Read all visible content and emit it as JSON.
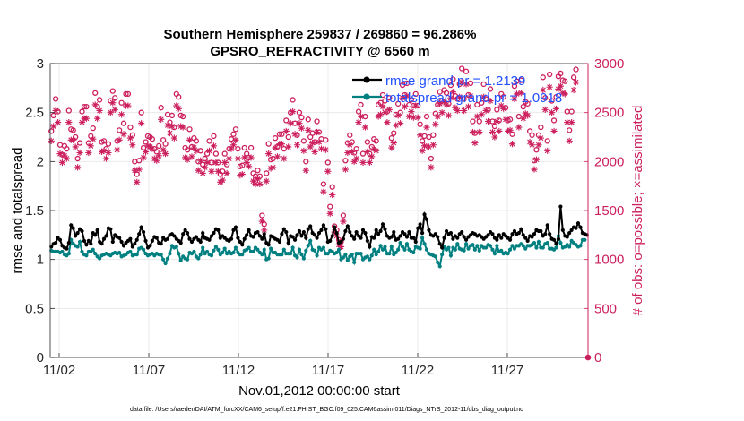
{
  "chart_data": {
    "type": "line",
    "title_line1": "Southern Hemisphere 259837 / 269860 = 96.286%",
    "title_line2": "GPSRO_REFRACTIVITY @ 6560 m",
    "xlabel": "Nov.01,2012 00:00:00 start",
    "ylabel_left": "rmse and totalspread",
    "ylabel_right": "# of obs: o=possible; ×=assimilated",
    "footnote": "data file: /Users/raeder/DAI/ATM_forcXX/CAM6_setup/f.e21.FHIST_BGC.f09_025.CAM6assim.011/Diags_NTrS_2012-11/obs_diag_output.nc",
    "x_range_days": [
      0.5,
      30.5
    ],
    "x_ticks": [
      {
        "day": 1,
        "label": "11/02"
      },
      {
        "day": 6,
        "label": "11/07"
      },
      {
        "day": 11,
        "label": "11/12"
      },
      {
        "day": 16,
        "label": "11/17"
      },
      {
        "day": 21,
        "label": "11/22"
      },
      {
        "day": 26,
        "label": "11/27"
      }
    ],
    "ylim_left": [
      0,
      3
    ],
    "yticks_left": [
      "0",
      "0.5",
      "1",
      "1.5",
      "2",
      "2.5",
      "3"
    ],
    "ylim_right": [
      0,
      3000
    ],
    "yticks_right": [
      "0",
      "500",
      "1000",
      "1500",
      "2000",
      "2500",
      "3000"
    ],
    "series": [
      {
        "name": "rmse",
        "legend": "rmse grand pr = 1.2139",
        "color": "#000000",
        "axis": "left",
        "values": [
          1.13,
          1.16,
          1.17,
          1.22,
          1.2,
          1.14,
          1.12,
          1.11,
          1.17,
          1.35,
          1.32,
          1.24,
          1.27,
          1.31,
          1.29,
          1.19,
          1.15,
          1.19,
          1.16,
          1.27,
          1.25,
          1.3,
          1.18,
          1.16,
          1.21,
          1.24,
          1.32,
          1.31,
          1.18,
          1.25,
          1.23,
          1.22,
          1.18,
          1.14,
          1.17,
          1.19,
          1.21,
          1.13,
          1.16,
          1.2,
          1.26,
          1.33,
          1.28,
          1.19,
          1.12,
          1.14,
          1.19,
          1.23,
          1.22,
          1.17,
          1.16,
          1.22,
          1.2,
          1.21,
          1.25,
          1.26,
          1.24,
          1.21,
          1.19,
          1.17,
          1.26,
          1.3,
          1.27,
          1.21,
          1.18,
          1.21,
          1.23,
          1.2,
          1.18,
          1.27,
          1.22,
          1.21,
          1.2,
          1.24,
          1.27,
          1.31,
          1.3,
          1.22,
          1.24,
          1.22,
          1.2,
          1.19,
          1.21,
          1.3,
          1.33,
          1.22,
          1.18,
          1.15,
          1.21,
          1.25,
          1.3,
          1.24,
          1.23,
          1.27,
          1.28,
          1.24,
          1.21,
          1.26,
          1.17,
          1.15,
          1.24,
          1.23,
          1.21,
          1.2,
          1.18,
          1.26,
          1.31,
          1.28,
          1.17,
          1.24,
          1.23,
          1.2,
          1.25,
          1.29,
          1.24,
          1.28,
          1.22,
          1.31,
          1.34,
          1.27,
          1.25,
          1.22,
          1.27,
          1.3,
          1.35,
          1.31,
          1.18,
          1.19,
          1.24,
          1.33,
          1.27,
          1.17,
          1.18,
          1.21,
          1.29,
          1.34,
          1.28,
          1.24,
          1.21,
          1.28,
          1.24,
          1.22,
          1.3,
          1.27,
          1.19,
          1.13,
          1.23,
          1.22,
          1.3,
          1.26,
          1.29,
          1.36,
          1.31,
          1.24,
          1.22,
          1.23,
          1.28,
          1.2,
          1.21,
          1.24,
          1.28,
          1.26,
          1.23,
          1.28,
          1.22,
          1.22,
          1.18,
          1.32,
          1.36,
          1.27,
          1.46,
          1.41,
          1.3,
          1.25,
          1.24,
          1.26,
          1.23,
          1.16,
          1.12,
          1.22,
          1.29,
          1.26,
          1.27,
          1.21,
          1.24,
          1.22,
          1.26,
          1.28,
          1.23,
          1.2,
          1.23,
          1.25,
          1.27,
          1.26,
          1.24,
          1.25,
          1.23,
          1.21,
          1.23,
          1.25,
          1.28,
          1.26,
          1.22,
          1.2,
          1.25,
          1.22,
          1.26,
          1.24,
          1.22,
          1.2,
          1.26,
          1.29,
          1.26,
          1.27,
          1.31,
          1.25,
          1.22,
          1.19,
          1.24,
          1.23,
          1.26,
          1.3,
          1.29,
          1.29,
          1.24,
          1.26,
          1.35,
          1.26,
          1.21,
          1.2,
          1.16,
          1.21,
          1.54,
          1.3,
          1.24,
          1.23,
          1.27,
          1.3,
          1.33,
          1.32,
          1.37,
          1.33,
          1.27,
          1.26,
          1.25
        ]
      },
      {
        "name": "totalspread",
        "legend": "totalspread grand pr = 1.0918",
        "color": "#008080",
        "axis": "left",
        "values": [
          1.09,
          1.08,
          1.08,
          1.08,
          1.07,
          1.08,
          1.05,
          1.04,
          1.06,
          1.2,
          1.16,
          1.14,
          1.13,
          1.18,
          1.08,
          1.05,
          1.04,
          1.08,
          1.08,
          1.1,
          1.06,
          1.03,
          1.01,
          1.04,
          1.05,
          1.06,
          1.05,
          1.04,
          1.06,
          1.07,
          1.06,
          1.07,
          1.03,
          1.04,
          1.05,
          1.07,
          1.08,
          1.04,
          1.05,
          1.05,
          1.11,
          1.12,
          1.1,
          1.06,
          1.04,
          1.05,
          1.06,
          1.04,
          1.06,
          1.05,
          1.05,
          1.0,
          0.96,
          1.01,
          1.06,
          1.14,
          1.12,
          1.13,
          1.06,
          0.99,
          1.03,
          1.01,
          1.0,
          1.07,
          1.06,
          1.08,
          1.03,
          1.01,
          1.05,
          1.12,
          1.06,
          1.08,
          1.05,
          1.04,
          1.09,
          1.13,
          1.1,
          1.05,
          1.07,
          1.11,
          1.06,
          1.08,
          1.06,
          1.07,
          1.12,
          1.07,
          1.05,
          1.05,
          1.09,
          1.1,
          1.12,
          1.08,
          1.08,
          1.12,
          1.1,
          1.07,
          1.05,
          1.1,
          1.0,
          1.01,
          1.11,
          1.07,
          1.07,
          1.05,
          1.05,
          1.05,
          1.1,
          1.06,
          1.06,
          1.06,
          1.12,
          1.04,
          1.02,
          1.1,
          1.05,
          1.01,
          1.09,
          1.14,
          1.19,
          1.1,
          1.09,
          1.04,
          1.12,
          1.1,
          1.12,
          1.06,
          1.06,
          1.09,
          1.08,
          1.06,
          1.07,
          1.1,
          1.0,
          1.02,
          1.05,
          0.99,
          1.03,
          1.05,
          0.97,
          1.06,
          1.06,
          1.06,
          1.0,
          1.02,
          1.03,
          1.0,
          1.04,
          1.1,
          1.05,
          1.08,
          1.14,
          1.1,
          1.13,
          1.06,
          1.06,
          1.13,
          1.05,
          1.07,
          1.1,
          1.17,
          1.13,
          1.1,
          1.16,
          1.1,
          1.08,
          1.07,
          1.13,
          1.12,
          1.11,
          1.22,
          1.16,
          1.1,
          1.06,
          1.05,
          1.04,
          1.03,
          0.97,
          0.93,
          1.05,
          1.13,
          1.1,
          1.12,
          1.04,
          1.12,
          1.1,
          1.16,
          1.11,
          1.1,
          1.09,
          1.16,
          1.11,
          1.14,
          1.15,
          1.1,
          1.14,
          1.09,
          1.14,
          1.12,
          1.12,
          1.15,
          1.14,
          1.1,
          1.06,
          1.14,
          1.08,
          1.09,
          1.06,
          1.07,
          1.06,
          1.1,
          1.14,
          1.11,
          1.14,
          1.14,
          1.16,
          1.14,
          1.11,
          1.14,
          1.14,
          1.15,
          1.17,
          1.12,
          1.18,
          1.12,
          1.12,
          1.16,
          1.17,
          1.11,
          1.11,
          1.1,
          1.12,
          1.24,
          1.17,
          1.12,
          1.13,
          1.15,
          1.13,
          1.19,
          1.17,
          1.15,
          1.13,
          1.14,
          1.2,
          1.2
        ]
      },
      {
        "name": "possible",
        "legend": "o = possible",
        "color": "#cc1f5d",
        "marker": "circle",
        "axis": "right",
        "values": [
          2310,
          2470,
          2640,
          2510,
          2170,
          2070,
          2160,
          2130,
          2520,
          2330,
          2320,
          2250,
          2030,
          2190,
          2510,
          2560,
          2560,
          2190,
          2260,
          2340,
          2700,
          2560,
          2630,
          2200,
          2210,
          2130,
          2180,
          2620,
          2720,
          2650,
          2210,
          2320,
          2600,
          2390,
          2690,
          2690,
          2350,
          2270,
          2000,
          1870,
          2010,
          2500,
          2140,
          2200,
          2260,
          2250,
          2230,
          2130,
          2100,
          2160,
          2550,
          2220,
          2180,
          2480,
          2400,
          2470,
          2350,
          2690,
          2660,
          2470,
          2460,
          2140,
          2120,
          2330,
          2150,
          2240,
          2210,
          2000,
          2110,
          1970,
          2030,
          2080,
          2210,
          1990,
          2260,
          2080,
          1990,
          1870,
          1900,
          2080,
          1970,
          2130,
          2230,
          2280,
          2330,
          2130,
          1950,
          1960,
          2140,
          2080,
          2040,
          2140,
          1880,
          1850,
          1910,
          1850,
          1450,
          1360,
          1880,
          2180,
          2020,
          2030,
          2240,
          2150,
          2280,
          2280,
          2130,
          2420,
          2250,
          2500,
          2630,
          2390,
          2270,
          2500,
          2450,
          2210,
          2000,
          2430,
          2250,
          2290,
          2200,
          2410,
          2300,
          2230,
          1770,
          2220,
          1990,
          1540,
          1740,
          1340,
          1300,
          1200,
          1180,
          1450,
          2010,
          2190,
          2270,
          2200,
          2090,
          2130,
          2510,
          2580,
          2080,
          2460,
          2200,
          2080,
          2150,
          2230,
          2210,
          2580,
          2600,
          2680,
          2620,
          2510,
          2650,
          2240,
          2290,
          2480,
          2590,
          2500,
          2780,
          2680,
          2800,
          2580,
          2630,
          2570,
          2690,
          2570,
          2380,
          2210,
          2260,
          2460,
          2250,
          2030,
          2270,
          2490,
          2580,
          2710,
          2620,
          2730,
          2700,
          2590,
          2780,
          2840,
          2670,
          2640,
          2790,
          2950,
          2640,
          2920,
          2680,
          2800,
          2410,
          2290,
          2580,
          2410,
          2600,
          2790,
          2640,
          2530,
          2740,
          2410,
          2360,
          2530,
          2420,
          2690,
          2660,
          2550,
          2420,
          2430,
          2280,
          2770,
          2820,
          2460,
          2830,
          2560,
          2610,
          2590,
          2310,
          2270,
          2010,
          2120,
          2270,
          2350,
          2860,
          2650,
          2210,
          2890,
          2620,
          2420,
          2660,
          2870,
          2900,
          2830,
          2820,
          2510,
          2320,
          2510,
          2860,
          2940
        ]
      },
      {
        "name": "assimilated",
        "legend": "× = assimilated",
        "color": "#cc1f5d",
        "marker": "asterisk",
        "axis": "right",
        "values": [
          2210,
          2360,
          2520,
          2400,
          2080,
          1990,
          2060,
          2030,
          2400,
          2220,
          2220,
          2150,
          1940,
          2090,
          2400,
          2440,
          2440,
          2090,
          2160,
          2230,
          2580,
          2440,
          2520,
          2100,
          2110,
          2030,
          2090,
          2500,
          2600,
          2530,
          2120,
          2220,
          2480,
          2280,
          2570,
          2570,
          2240,
          2170,
          1910,
          1790,
          1920,
          2390,
          2040,
          2100,
          2160,
          2150,
          2130,
          2030,
          2010,
          2060,
          2430,
          2120,
          2080,
          2370,
          2290,
          2360,
          2240,
          2570,
          2540,
          2360,
          2350,
          2040,
          2020,
          2220,
          2050,
          2140,
          2110,
          1910,
          2010,
          1880,
          1940,
          1990,
          2110,
          1900,
          2160,
          1990,
          1900,
          1790,
          1810,
          1990,
          1880,
          2030,
          2130,
          2170,
          2220,
          2030,
          1860,
          1870,
          2040,
          1990,
          1950,
          2040,
          1800,
          1770,
          1820,
          1770,
          1390,
          1300,
          1800,
          2080,
          1930,
          1940,
          2140,
          2050,
          2180,
          2180,
          2030,
          2310,
          2150,
          2390,
          2510,
          2280,
          2170,
          2390,
          2340,
          2110,
          1910,
          2320,
          2150,
          2190,
          2100,
          2300,
          2200,
          2130,
          1690,
          2120,
          1900,
          1470,
          1660,
          1280,
          1240,
          1150,
          1130,
          1390,
          1920,
          2090,
          2170,
          2100,
          2000,
          2030,
          2400,
          2460,
          1990,
          2350,
          2100,
          1990,
          2050,
          2130,
          2110,
          2460,
          2480,
          2560,
          2500,
          2400,
          2530,
          2140,
          2190,
          2370,
          2470,
          2390,
          2650,
          2560,
          2670,
          2460,
          2510,
          2450,
          2570,
          2450,
          2270,
          2110,
          2160,
          2350,
          2150,
          1940,
          2170,
          2380,
          2460,
          2590,
          2500,
          2610,
          2580,
          2470,
          2650,
          2710,
          2550,
          2520,
          2660,
          2810,
          2520,
          2790,
          2560,
          2670,
          2300,
          2190,
          2460,
          2300,
          2480,
          2660,
          2520,
          2410,
          2620,
          2300,
          2250,
          2410,
          2310,
          2570,
          2540,
          2430,
          2310,
          2320,
          2180,
          2640,
          2690,
          2350,
          2700,
          2440,
          2490,
          2470,
          2200,
          2170,
          1920,
          2020,
          2170,
          2240,
          2730,
          2530,
          2110,
          2760,
          2500,
          2310,
          2540,
          2740,
          2770,
          2700,
          2690,
          2400,
          2210,
          2400,
          2730,
          2810
        ]
      }
    ]
  }
}
